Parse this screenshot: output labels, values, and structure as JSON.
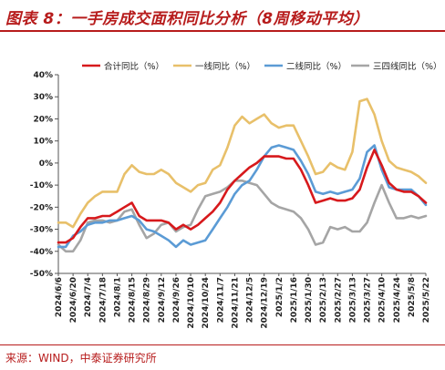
{
  "title": "图表 8：一手房成交面积同比分析（8周移动平均）",
  "source": "来源：WIND，中泰证券研究所",
  "colors": {
    "accent": "#b71c1c",
    "total": "#d7191c",
    "tier1": "#e8c06a",
    "tier2": "#5b9bd5",
    "tier34": "#a5a5a5"
  },
  "chart_data": {
    "type": "line",
    "ylim": [
      -50,
      40
    ],
    "yticks": [
      "40%",
      "30%",
      "20%",
      "10%",
      "0%",
      "-10%",
      "-20%",
      "-30%",
      "-40%",
      "-50%"
    ],
    "legend_position": "top",
    "x": [
      "2024/6/6",
      "2024/6/13",
      "2024/6/20",
      "2024/6/27",
      "2024/7/4",
      "2024/7/11",
      "2024/7/18",
      "2024/7/25",
      "2024/8/1",
      "2024/8/8",
      "2024/8/15",
      "2024/8/22",
      "2024/8/29",
      "2024/9/5",
      "2024/9/12",
      "2024/9/19",
      "2024/9/26",
      "2024/10/3",
      "2024/10/10",
      "2024/10/17",
      "2024/10/24",
      "2024/10/31",
      "2024/11/7",
      "2024/11/14",
      "2024/11/21",
      "2024/11/28",
      "2024/12/5",
      "2024/12/12",
      "2024/12/19",
      "2024/12/26",
      "2025/1/2",
      "2025/1/9",
      "2025/1/16",
      "2025/1/23",
      "2025/1/30",
      "2025/2/6",
      "2025/2/13",
      "2025/2/20",
      "2025/2/27",
      "2025/3/6",
      "2025/3/13",
      "2025/3/20",
      "2025/3/27",
      "2025/4/3",
      "2025/4/10",
      "2025/4/17",
      "2025/4/24",
      "2025/5/1",
      "2025/5/8",
      "2025/5/15",
      "2025/5/22"
    ],
    "xticks": [
      "2024/6/6",
      "2024/6/20",
      "2024/7/4",
      "2024/7/18",
      "2024/8/1",
      "2024/8/15",
      "2024/8/29",
      "2024/9/12",
      "2024/9/26",
      "2024/10/10",
      "2024/10/24",
      "2024/11/7",
      "2024/11/21",
      "2024/12/5",
      "2024/12/19",
      "2025/1/2",
      "2025/1/16",
      "2025/1/30",
      "2025/2/13",
      "2025/2/27",
      "2025/3/13",
      "2025/3/27",
      "2025/4/10",
      "2025/4/24",
      "2025/5/8",
      "2025/5/22"
    ],
    "series": [
      {
        "name": "合计同比（%）",
        "color": "#d7191c",
        "values": [
          -36,
          -36,
          -34,
          -29,
          -25,
          -25,
          -24,
          -24,
          -22,
          -20,
          -18,
          -24,
          -26,
          -26,
          -26,
          -27,
          -30,
          -28,
          -30,
          -28,
          -25,
          -22,
          -18,
          -12,
          -8,
          -5,
          -2,
          0,
          3,
          3,
          3,
          2,
          2,
          -3,
          -10,
          -18,
          -17,
          -16,
          -17,
          -17,
          -16,
          -12,
          -2,
          6,
          -1,
          -9,
          -12,
          -13,
          -13,
          -15,
          -18
        ]
      },
      {
        "name": "一线同比（%）",
        "color": "#e8c06a",
        "values": [
          -27,
          -27,
          -29,
          -23,
          -18,
          -15,
          -13,
          -13,
          -13,
          -5,
          -1,
          -4,
          -5,
          -5,
          -3,
          -5,
          -9,
          -11,
          -13,
          -10,
          -9,
          -3,
          -1,
          7,
          17,
          21,
          18,
          20,
          22,
          18,
          16,
          17,
          17,
          10,
          3,
          -5,
          -4,
          0,
          -2,
          -3,
          5,
          28,
          29,
          22,
          10,
          1,
          -2,
          -3,
          -4,
          -6,
          -9
        ]
      },
      {
        "name": "二线同比（%）",
        "color": "#5b9bd5",
        "values": [
          -38,
          -38,
          -33,
          -31,
          -28,
          -27,
          -27,
          -26,
          -26,
          -25,
          -24,
          -26,
          -30,
          -31,
          -33,
          -35,
          -38,
          -35,
          -37,
          -36,
          -35,
          -30,
          -25,
          -20,
          -14,
          -10,
          -8,
          -3,
          3,
          7,
          8,
          7,
          6,
          1,
          -5,
          -13,
          -14,
          -13,
          -14,
          -13,
          -12,
          -7,
          5,
          8,
          -3,
          -11,
          -12,
          -12,
          -12,
          -15,
          -19
        ]
      },
      {
        "name": "三四线同比（%）",
        "color": "#a5a5a5",
        "values": [
          -37,
          -40,
          -40,
          -35,
          -27,
          -26,
          -26,
          -27,
          -26,
          -22,
          -21,
          -28,
          -34,
          -32,
          -28,
          -27,
          -31,
          -29,
          -28,
          -21,
          -15,
          -14,
          -13,
          -11,
          -8,
          -8,
          -9,
          -10,
          -14,
          -18,
          -20,
          -21,
          -22,
          -25,
          -30,
          -37,
          -36,
          -29,
          -30,
          -29,
          -31,
          -31,
          -27,
          -18,
          -10,
          -18,
          -25,
          -25,
          -24,
          -25,
          -24
        ]
      }
    ]
  }
}
